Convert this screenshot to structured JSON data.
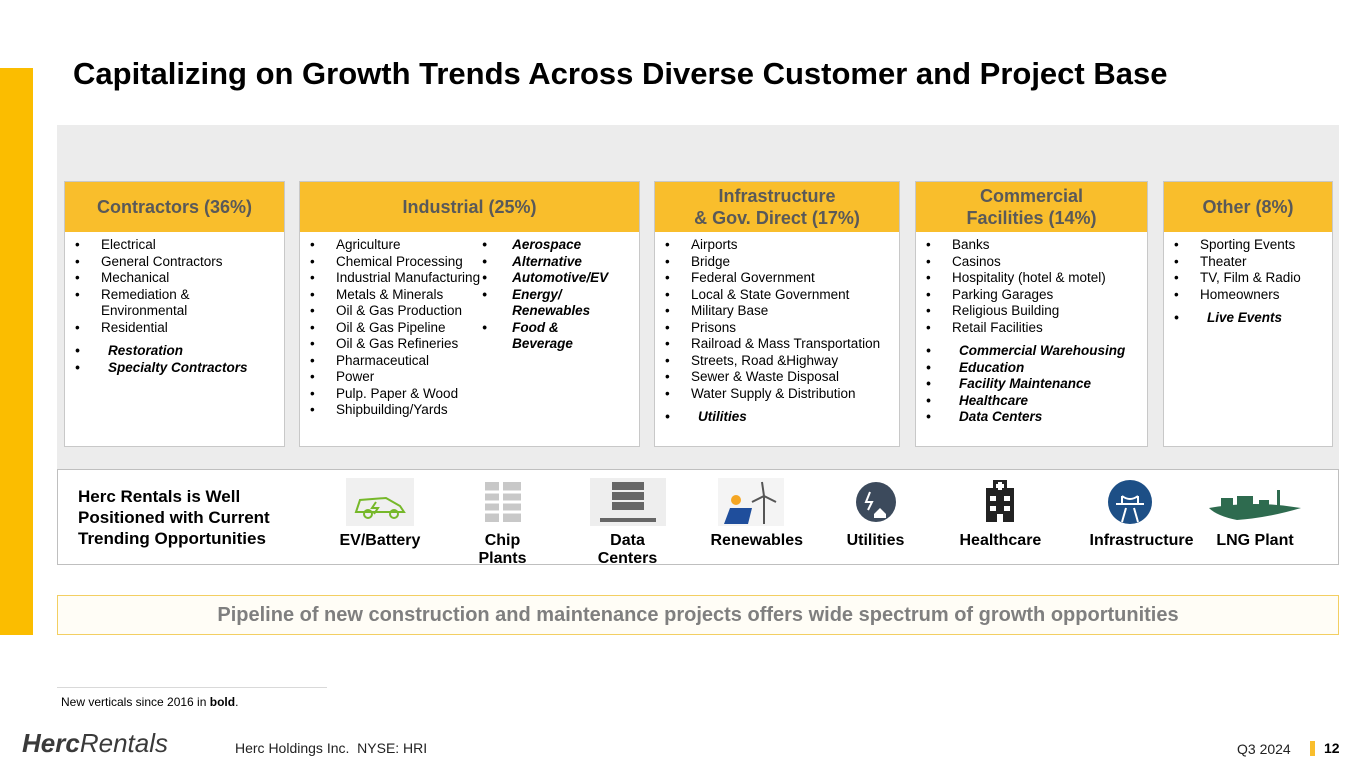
{
  "title": "Capitalizing on Growth Trends Across Diverse Customer and Project Base",
  "segments": [
    {
      "header": "Contractors (36%)",
      "items": [
        "Electrical",
        "General Contractors",
        "Mechanical",
        "Remediation & Environmental",
        "Residential"
      ],
      "new_items": [
        "Restoration",
        "Specialty Contractors"
      ]
    },
    {
      "header": "Industrial (25%)",
      "items": [
        "Agriculture",
        "Chemical Processing",
        "Industrial Manufacturing",
        "Metals & Minerals",
        "Oil & Gas Production",
        "Oil & Gas Pipeline",
        "Oil & Gas Refineries",
        "Pharmaceutical",
        "Power",
        "Pulp. Paper & Wood",
        "Shipbuilding/Yards"
      ],
      "new_items": [
        "Aerospace",
        "Alternative",
        "Automotive/EV",
        "Energy/ Renewables",
        "Food & Beverage"
      ]
    },
    {
      "header": "Infrastructure\n& Gov. Direct (17%)",
      "items": [
        "Airports",
        "Bridge",
        "Federal Government",
        "Local & State Government",
        "Military Base",
        "Prisons",
        "Railroad & Mass Transportation",
        "Streets, Road &Highway",
        "Sewer & Waste Disposal",
        "Water Supply & Distribution"
      ],
      "new_items": [
        "Utilities"
      ]
    },
    {
      "header": "Commercial\nFacilities (14%)",
      "items": [
        "Banks",
        "Casinos",
        "Hospitality (hotel & motel)",
        "Parking Garages",
        "Religious Building",
        "Retail Facilities"
      ],
      "new_items": [
        "Commercial Warehousing",
        "Education",
        "Facility Maintenance",
        "Healthcare",
        "Data Centers"
      ]
    },
    {
      "header": "Other (8%)",
      "items": [
        "Sporting Events",
        "Theater",
        "TV, Film & Radio",
        "Homeowners"
      ],
      "new_items": [
        "Live Events"
      ]
    }
  ],
  "trends": {
    "label": "Herc Rentals is Well Positioned with Current Trending Opportunities",
    "items": [
      "EV/Battery",
      "Chip Plants",
      "Data Centers",
      "Renewables",
      "Utilities",
      "Healthcare",
      "Infrastructure",
      "LNG Plant"
    ]
  },
  "banner": "Pipeline of new construction and maintenance projects offers wide spectrum of growth opportunities",
  "footnote": {
    "prefix": "New verticals since 2016 in ",
    "emphasis": "bold",
    "suffix": "."
  },
  "footer": {
    "logo_bold": "Herc",
    "logo_light": "Rentals",
    "company": "Herc Holdings Inc.  NYSE: HRI",
    "period": "Q3 2024",
    "page": "12"
  }
}
